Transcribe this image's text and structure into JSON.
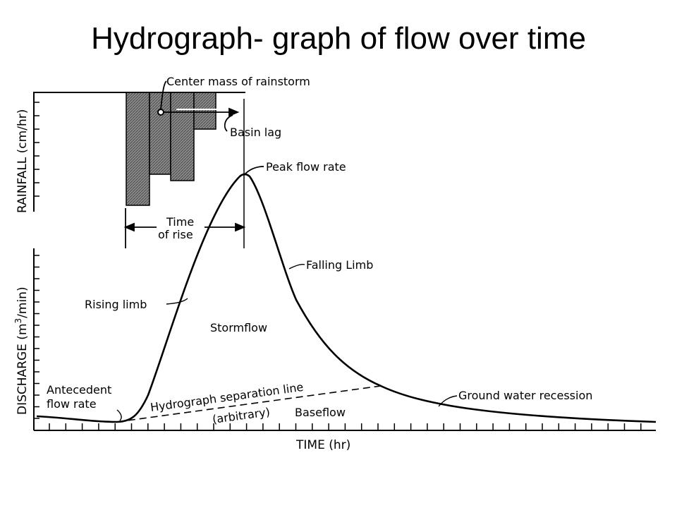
{
  "title": "Hydrograph- graph of flow over time",
  "axes": {
    "rainfall": "RAINFALL (cm/hr)",
    "discharge": "DISCHARGE (m",
    "discharge_sup": "3",
    "discharge_unit": "/min)",
    "time": "TIME (hr)"
  },
  "labels": {
    "center_mass": "Center mass of rainstorm",
    "basin_lag": "Basin lag",
    "peak_flow": "Peak flow rate",
    "time_of_rise_1": "Time",
    "time_of_rise_2": "of rise",
    "falling_limb": "Falling Limb",
    "rising_limb": "Rising limb",
    "stormflow": "Stormflow",
    "antecedent_1": "Antecedent",
    "antecedent_2": "flow rate",
    "separation_1": "Hydrograph separation line",
    "separation_2": "(arbitrary)",
    "baseflow": "Baseflow",
    "groundwater": "Ground water recession"
  }
}
